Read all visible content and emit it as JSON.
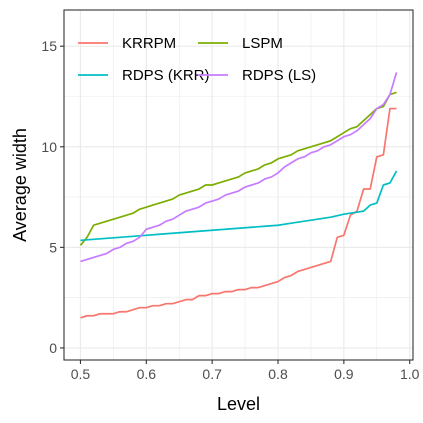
{
  "chart_data": {
    "type": "line",
    "xlabel": "Level",
    "ylabel": "Average width",
    "xlim": [
      0.475,
      1.005
    ],
    "ylim": [
      -0.6,
      16.8
    ],
    "xticks": [
      0.5,
      0.6,
      0.7,
      0.8,
      0.9,
      1.0
    ],
    "xtick_labels": [
      "0.5",
      "0.6",
      "0.7",
      "0.8",
      "0.9",
      "1.0"
    ],
    "yticks": [
      0,
      5,
      10,
      15
    ],
    "ytick_labels": [
      "0",
      "5",
      "10",
      "15"
    ],
    "grid": true,
    "legend_position": "top-left",
    "series": [
      {
        "name": "KRRPM",
        "color": "#F8766D",
        "points": [
          [
            0.5,
            1.5
          ],
          [
            0.51,
            1.6
          ],
          [
            0.52,
            1.6
          ],
          [
            0.53,
            1.7
          ],
          [
            0.54,
            1.7
          ],
          [
            0.55,
            1.7
          ],
          [
            0.56,
            1.8
          ],
          [
            0.57,
            1.8
          ],
          [
            0.58,
            1.9
          ],
          [
            0.59,
            2.0
          ],
          [
            0.6,
            2.0
          ],
          [
            0.61,
            2.1
          ],
          [
            0.62,
            2.1
          ],
          [
            0.63,
            2.2
          ],
          [
            0.64,
            2.2
          ],
          [
            0.65,
            2.3
          ],
          [
            0.66,
            2.4
          ],
          [
            0.67,
            2.4
          ],
          [
            0.68,
            2.6
          ],
          [
            0.69,
            2.6
          ],
          [
            0.7,
            2.7
          ],
          [
            0.71,
            2.7
          ],
          [
            0.72,
            2.8
          ],
          [
            0.73,
            2.8
          ],
          [
            0.74,
            2.9
          ],
          [
            0.75,
            2.9
          ],
          [
            0.76,
            3.0
          ],
          [
            0.77,
            3.0
          ],
          [
            0.78,
            3.1
          ],
          [
            0.79,
            3.2
          ],
          [
            0.8,
            3.3
          ],
          [
            0.81,
            3.5
          ],
          [
            0.82,
            3.6
          ],
          [
            0.83,
            3.8
          ],
          [
            0.84,
            3.9
          ],
          [
            0.85,
            4.0
          ],
          [
            0.86,
            4.1
          ],
          [
            0.87,
            4.2
          ],
          [
            0.88,
            4.3
          ],
          [
            0.89,
            5.5
          ],
          [
            0.9,
            5.6
          ],
          [
            0.91,
            6.6
          ],
          [
            0.92,
            6.8
          ],
          [
            0.93,
            7.9
          ],
          [
            0.94,
            7.9
          ],
          [
            0.95,
            9.5
          ],
          [
            0.96,
            9.6
          ],
          [
            0.97,
            11.9
          ],
          [
            0.98,
            11.9
          ]
        ]
      },
      {
        "name": "LSPM",
        "color": "#7CAE00",
        "points": [
          [
            0.5,
            5.1
          ],
          [
            0.51,
            5.5
          ],
          [
            0.52,
            6.1
          ],
          [
            0.53,
            6.2
          ],
          [
            0.54,
            6.3
          ],
          [
            0.55,
            6.4
          ],
          [
            0.56,
            6.5
          ],
          [
            0.57,
            6.6
          ],
          [
            0.58,
            6.7
          ],
          [
            0.59,
            6.9
          ],
          [
            0.6,
            7.0
          ],
          [
            0.61,
            7.1
          ],
          [
            0.62,
            7.2
          ],
          [
            0.63,
            7.3
          ],
          [
            0.64,
            7.4
          ],
          [
            0.65,
            7.6
          ],
          [
            0.66,
            7.7
          ],
          [
            0.67,
            7.8
          ],
          [
            0.68,
            7.9
          ],
          [
            0.69,
            8.1
          ],
          [
            0.7,
            8.1
          ],
          [
            0.71,
            8.2
          ],
          [
            0.72,
            8.3
          ],
          [
            0.73,
            8.4
          ],
          [
            0.74,
            8.5
          ],
          [
            0.75,
            8.7
          ],
          [
            0.76,
            8.8
          ],
          [
            0.77,
            8.9
          ],
          [
            0.78,
            9.1
          ],
          [
            0.79,
            9.2
          ],
          [
            0.8,
            9.4
          ],
          [
            0.81,
            9.5
          ],
          [
            0.82,
            9.6
          ],
          [
            0.83,
            9.8
          ],
          [
            0.84,
            9.9
          ],
          [
            0.85,
            10.0
          ],
          [
            0.86,
            10.1
          ],
          [
            0.87,
            10.2
          ],
          [
            0.88,
            10.3
          ],
          [
            0.89,
            10.5
          ],
          [
            0.9,
            10.7
          ],
          [
            0.91,
            10.9
          ],
          [
            0.92,
            11.0
          ],
          [
            0.93,
            11.3
          ],
          [
            0.94,
            11.6
          ],
          [
            0.95,
            11.9
          ],
          [
            0.96,
            12.0
          ],
          [
            0.97,
            12.6
          ],
          [
            0.98,
            12.7
          ]
        ]
      },
      {
        "name": "RDPS (KRR)",
        "color": "#00BFC4",
        "points": [
          [
            0.5,
            5.35
          ],
          [
            0.52,
            5.4
          ],
          [
            0.54,
            5.45
          ],
          [
            0.56,
            5.5
          ],
          [
            0.58,
            5.55
          ],
          [
            0.6,
            5.6
          ],
          [
            0.62,
            5.65
          ],
          [
            0.64,
            5.7
          ],
          [
            0.66,
            5.75
          ],
          [
            0.68,
            5.8
          ],
          [
            0.7,
            5.85
          ],
          [
            0.72,
            5.9
          ],
          [
            0.74,
            5.95
          ],
          [
            0.76,
            6.0
          ],
          [
            0.78,
            6.05
          ],
          [
            0.8,
            6.1
          ],
          [
            0.82,
            6.2
          ],
          [
            0.84,
            6.3
          ],
          [
            0.86,
            6.4
          ],
          [
            0.88,
            6.5
          ],
          [
            0.9,
            6.65
          ],
          [
            0.91,
            6.7
          ],
          [
            0.92,
            6.75
          ],
          [
            0.93,
            6.8
          ],
          [
            0.94,
            7.1
          ],
          [
            0.95,
            7.2
          ],
          [
            0.96,
            8.1
          ],
          [
            0.97,
            8.2
          ],
          [
            0.98,
            8.8
          ]
        ]
      },
      {
        "name": "RDPS (LS)",
        "color": "#C77CFF",
        "points": [
          [
            0.5,
            4.3
          ],
          [
            0.51,
            4.4
          ],
          [
            0.52,
            4.5
          ],
          [
            0.53,
            4.6
          ],
          [
            0.54,
            4.7
          ],
          [
            0.55,
            4.9
          ],
          [
            0.56,
            5.0
          ],
          [
            0.57,
            5.2
          ],
          [
            0.58,
            5.3
          ],
          [
            0.59,
            5.5
          ],
          [
            0.6,
            5.9
          ],
          [
            0.61,
            6.0
          ],
          [
            0.62,
            6.1
          ],
          [
            0.63,
            6.3
          ],
          [
            0.64,
            6.4
          ],
          [
            0.65,
            6.6
          ],
          [
            0.66,
            6.8
          ],
          [
            0.67,
            6.9
          ],
          [
            0.68,
            7.0
          ],
          [
            0.69,
            7.2
          ],
          [
            0.7,
            7.3
          ],
          [
            0.71,
            7.4
          ],
          [
            0.72,
            7.6
          ],
          [
            0.73,
            7.7
          ],
          [
            0.74,
            7.8
          ],
          [
            0.75,
            8.0
          ],
          [
            0.76,
            8.1
          ],
          [
            0.77,
            8.2
          ],
          [
            0.78,
            8.4
          ],
          [
            0.79,
            8.5
          ],
          [
            0.8,
            8.7
          ],
          [
            0.81,
            9.0
          ],
          [
            0.82,
            9.2
          ],
          [
            0.83,
            9.4
          ],
          [
            0.84,
            9.5
          ],
          [
            0.85,
            9.7
          ],
          [
            0.86,
            9.8
          ],
          [
            0.87,
            10.0
          ],
          [
            0.88,
            10.1
          ],
          [
            0.89,
            10.3
          ],
          [
            0.9,
            10.5
          ],
          [
            0.91,
            10.6
          ],
          [
            0.92,
            10.8
          ],
          [
            0.93,
            11.1
          ],
          [
            0.94,
            11.4
          ],
          [
            0.95,
            11.9
          ],
          [
            0.96,
            12.1
          ],
          [
            0.97,
            12.6
          ],
          [
            0.98,
            13.7
          ]
        ]
      }
    ]
  }
}
